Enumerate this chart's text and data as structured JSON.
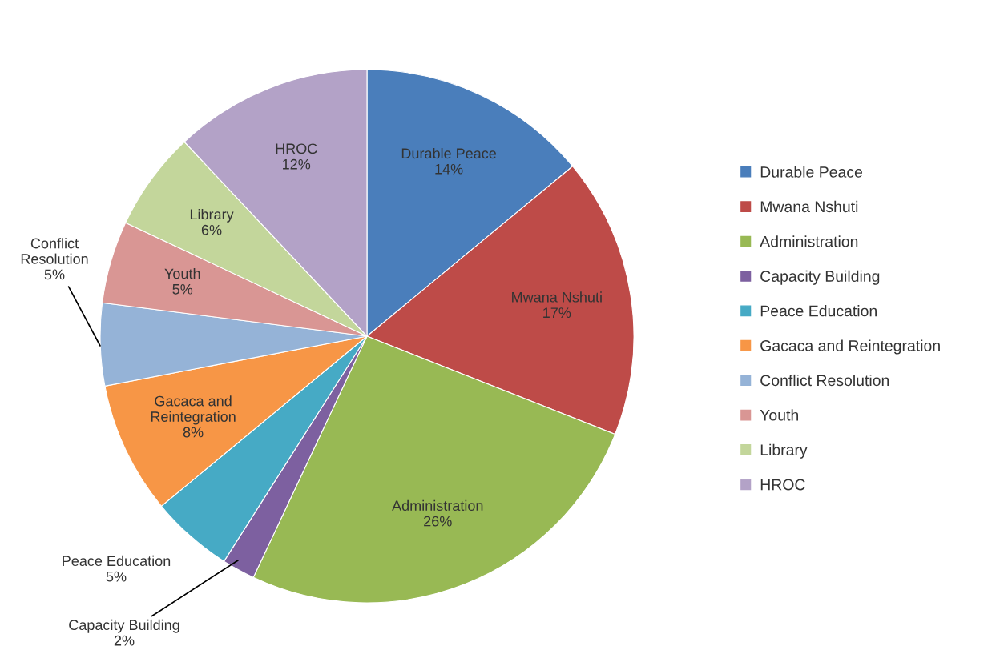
{
  "chart_data": {
    "type": "pie",
    "categories": [
      "Durable Peace",
      "Mwana Nshuti",
      "Administration",
      "Capacity Building",
      "Peace Education",
      "Gacaca and Reintegration",
      "Conflict Resolution",
      "Youth",
      "Library",
      "HROC"
    ],
    "values": [
      14,
      17,
      26,
      2,
      5,
      8,
      5,
      5,
      6,
      12
    ],
    "value_labels": [
      "14%",
      "17%",
      "26%",
      "2%",
      "5%",
      "8%",
      "5%",
      "5%",
      "6%",
      "12%"
    ],
    "colors": [
      "#4a7ebb",
      "#be4b48",
      "#98b954",
      "#7d60a0",
      "#46aac5",
      "#f79646",
      "#95b3d7",
      "#d99694",
      "#c3d69b",
      "#b3a2c7"
    ],
    "legend": "right"
  }
}
